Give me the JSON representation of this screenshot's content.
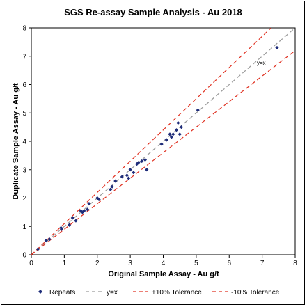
{
  "chart_data": {
    "type": "scatter",
    "title": "SGS Re-assay Sample Analysis - Au 2018",
    "xlabel": "Original Sample Assay - Au g/t",
    "ylabel": "Duplicate Sample Assay - Au g/t",
    "xlim": [
      0,
      8
    ],
    "ylim": [
      0,
      8
    ],
    "xticks": [
      "0",
      "1",
      "2",
      "3",
      "4",
      "5",
      "6",
      "7",
      "8"
    ],
    "yticks": [
      "0",
      "1",
      "2",
      "3",
      "4",
      "5",
      "6",
      "7",
      "8"
    ],
    "grid": false,
    "legend_position": "bottom",
    "annotation": "y=x",
    "series": [
      {
        "name": "Repeats",
        "marker": "diamond",
        "color": "#1f2d7a",
        "points": [
          [
            0.2,
            0.2
          ],
          [
            0.45,
            0.5
          ],
          [
            0.55,
            0.55
          ],
          [
            0.9,
            0.95
          ],
          [
            0.92,
            0.9
          ],
          [
            1.15,
            1.05
          ],
          [
            1.25,
            1.3
          ],
          [
            1.35,
            1.2
          ],
          [
            1.5,
            1.55
          ],
          [
            1.55,
            1.5
          ],
          [
            1.6,
            1.55
          ],
          [
            1.7,
            1.6
          ],
          [
            1.75,
            1.8
          ],
          [
            2.0,
            2.0
          ],
          [
            2.05,
            1.95
          ],
          [
            2.4,
            2.3
          ],
          [
            2.45,
            2.4
          ],
          [
            2.55,
            2.6
          ],
          [
            2.75,
            2.75
          ],
          [
            2.9,
            2.8
          ],
          [
            2.95,
            2.7
          ],
          [
            3.0,
            3.0
          ],
          [
            3.1,
            2.9
          ],
          [
            3.2,
            3.2
          ],
          [
            3.25,
            3.25
          ],
          [
            3.35,
            3.3
          ],
          [
            3.45,
            3.35
          ],
          [
            3.5,
            3.0
          ],
          [
            3.95,
            3.9
          ],
          [
            4.1,
            4.05
          ],
          [
            4.2,
            4.25
          ],
          [
            4.25,
            4.15
          ],
          [
            4.3,
            4.25
          ],
          [
            4.4,
            4.4
          ],
          [
            4.45,
            4.65
          ],
          [
            4.5,
            4.25
          ],
          [
            4.55,
            4.5
          ],
          [
            5.05,
            5.1
          ],
          [
            7.45,
            7.3
          ]
        ]
      },
      {
        "name": "y=x",
        "color": "#9a9a9a",
        "dash": true,
        "x": [
          0,
          8
        ],
        "y": [
          0,
          8
        ]
      },
      {
        "name": "+10% Tolerance",
        "color": "#e03020",
        "dash": true,
        "x": [
          0,
          7.27
        ],
        "y": [
          0,
          8
        ]
      },
      {
        "name": "-10% Tolerance",
        "color": "#e03020",
        "dash": true,
        "x": [
          0,
          8
        ],
        "y": [
          0,
          7.2
        ]
      }
    ]
  }
}
